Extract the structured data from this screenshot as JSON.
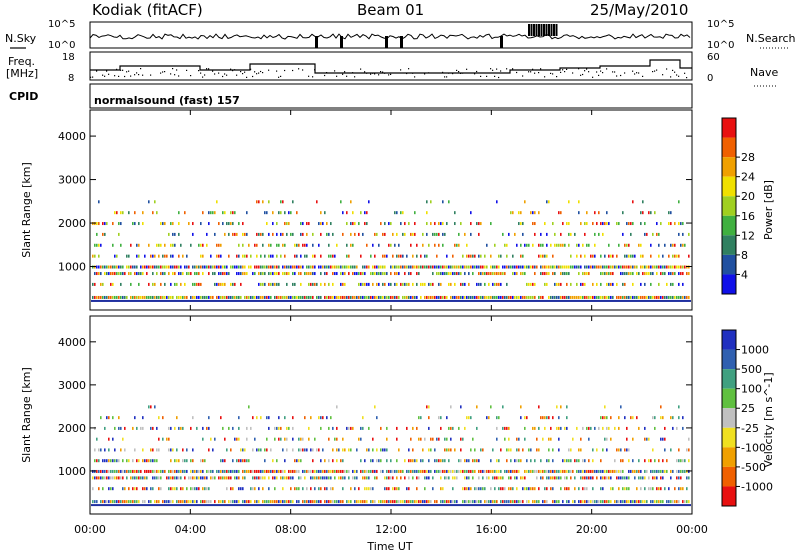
{
  "header": {
    "station": "Kodiak (fitACF)",
    "beam": "Beam 01",
    "date": "25/May/2010"
  },
  "side_labels": {
    "nsky": "N.Sky",
    "nsearch": "N.Search",
    "freq_line1": "Freq.",
    "freq_line2": "[MHz]",
    "nave": "Nave",
    "cpid": "CPID"
  },
  "cpid_text": "normalsound (fast) 157",
  "noise_panel": {
    "left_ticks": [
      "10^5",
      "10^0"
    ],
    "right_ticks": [
      "10^5",
      "10^0"
    ]
  },
  "freq_panel": {
    "left_ticks": [
      "18",
      "8"
    ],
    "right_ticks": [
      "60",
      "0"
    ]
  },
  "x_axis": {
    "label": "Time UT",
    "ticks": [
      "00:00",
      "04:00",
      "08:00",
      "12:00",
      "16:00",
      "20:00",
      "00:00"
    ]
  },
  "power_panel": {
    "ylabel": "Slant Range [km]",
    "yticks": [
      "1000",
      "2000",
      "3000",
      "4000"
    ],
    "colorbar_label": "Power [dB]",
    "colorbar_ticks": [
      "4",
      "8",
      "12",
      "16",
      "20",
      "24",
      "28"
    ],
    "colorbar_colors": [
      "#1010e8",
      "#2050a0",
      "#308060",
      "#40b040",
      "#a0d020",
      "#f0e000",
      "#f0a000",
      "#f06000",
      "#e81010"
    ]
  },
  "velocity_panel": {
    "ylabel": "Slant Range [km]",
    "yticks": [
      "1000",
      "2000",
      "3000",
      "4000"
    ],
    "colorbar_label": "Velocity [m s^-1]",
    "colorbar_ticks": [
      "1000",
      "500",
      "100",
      "25",
      "-25",
      "-100",
      "-500",
      "-1000"
    ],
    "colorbar_colors": [
      "#2030c0",
      "#3060b0",
      "#40a080",
      "#60c040",
      "#c0c0c0",
      "#f0e020",
      "#f0a000",
      "#f06000",
      "#e81010"
    ]
  },
  "chart_data": {
    "type": "heatmap",
    "title": "Kodiak (fitACF) Beam 01 25/May/2010",
    "xlabel": "Time UT",
    "ylabel": "Slant Range [km]",
    "xlim": [
      0,
      24
    ],
    "ylim": [
      0,
      4600
    ],
    "series": [
      {
        "name": "Power [dB]",
        "range_bands_km": [
          300,
          600,
          850,
          1000,
          1250,
          1500,
          1750,
          2000,
          2250,
          2500
        ],
        "band_density": [
          0.95,
          0.5,
          0.7,
          0.9,
          0.45,
          0.4,
          0.3,
          0.35,
          0.2,
          0.08
        ],
        "value_range": [
          0,
          30
        ]
      },
      {
        "name": "Velocity [m s^-1]",
        "range_bands_km": [
          300,
          600,
          850,
          1000,
          1250,
          1500,
          1750,
          2000,
          2250,
          2500
        ],
        "band_density": [
          0.9,
          0.5,
          0.7,
          0.9,
          0.45,
          0.4,
          0.3,
          0.35,
          0.2,
          0.08
        ],
        "value_range": [
          -1000,
          1000
        ]
      }
    ],
    "cpid": 157
  }
}
